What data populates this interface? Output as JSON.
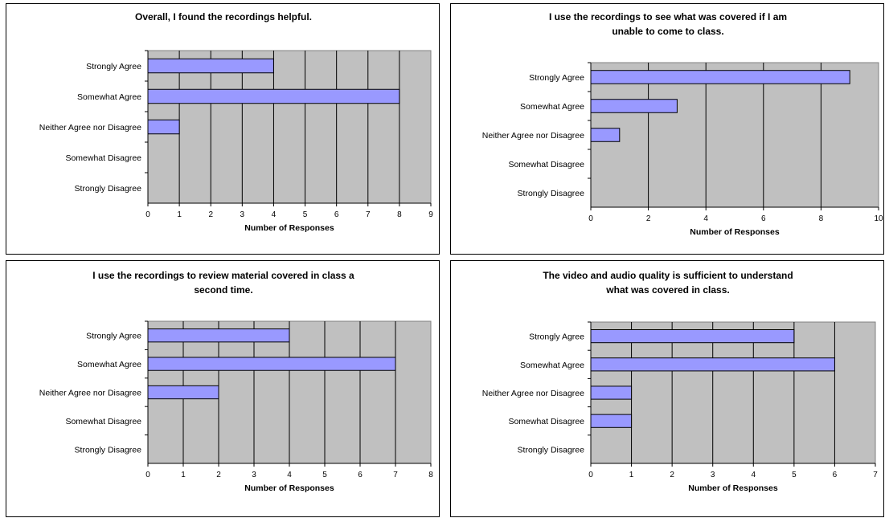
{
  "colors": {
    "plot_bg": "#c0c0c0",
    "bar_fill": "#9999ff",
    "bar_stroke": "#000000",
    "gridline": "#000000"
  },
  "chart_data": [
    {
      "type": "bar",
      "orientation": "horizontal",
      "title": [
        "Overall, I found the recordings helpful."
      ],
      "categories": [
        "Strongly Agree",
        "Somewhat Agree",
        "Neither Agree nor Disagree",
        "Somewhat Disagree",
        "Strongly Disagree"
      ],
      "values": [
        4,
        8,
        1,
        0,
        0
      ],
      "xlabel": "Number of Responses",
      "xlim": [
        0,
        9
      ],
      "ticks": [
        0,
        1,
        2,
        3,
        4,
        5,
        6,
        7,
        8,
        9
      ],
      "grid": true
    },
    {
      "type": "bar",
      "orientation": "horizontal",
      "title": [
        "I use the recordings to see what was covered if I am",
        "unable to come to class."
      ],
      "categories": [
        "Strongly Agree",
        "Somewhat Agree",
        "Neither Agree nor Disagree",
        "Somewhat Disagree",
        "Strongly Disagree"
      ],
      "values": [
        9,
        3,
        1,
        0,
        0
      ],
      "xlabel": "Number of Responses",
      "xlim": [
        0,
        10
      ],
      "ticks": [
        0,
        2,
        4,
        6,
        8,
        10
      ],
      "grid": true
    },
    {
      "type": "bar",
      "orientation": "horizontal",
      "title": [
        "I use the recordings to review material covered in class a",
        "second time."
      ],
      "categories": [
        "Strongly Agree",
        "Somewhat Agree",
        "Neither Agree nor Disagree",
        "Somewhat Disagree",
        "Strongly Disagree"
      ],
      "values": [
        4,
        7,
        2,
        0,
        0
      ],
      "xlabel": "Number of Responses",
      "xlim": [
        0,
        8
      ],
      "ticks": [
        0,
        1,
        2,
        3,
        4,
        5,
        6,
        7,
        8
      ],
      "grid": true
    },
    {
      "type": "bar",
      "orientation": "horizontal",
      "title": [
        "The video and audio quality is sufficient to understand",
        "what was covered in class."
      ],
      "categories": [
        "Strongly Agree",
        "Somewhat Agree",
        "Neither Agree nor Disagree",
        "Somewhat Disagree",
        "Strongly Disagree"
      ],
      "values": [
        5,
        6,
        1,
        1,
        0
      ],
      "xlabel": "Number of Responses",
      "xlim": [
        0,
        7
      ],
      "ticks": [
        0,
        1,
        2,
        3,
        4,
        5,
        6,
        7
      ],
      "grid": true
    }
  ]
}
